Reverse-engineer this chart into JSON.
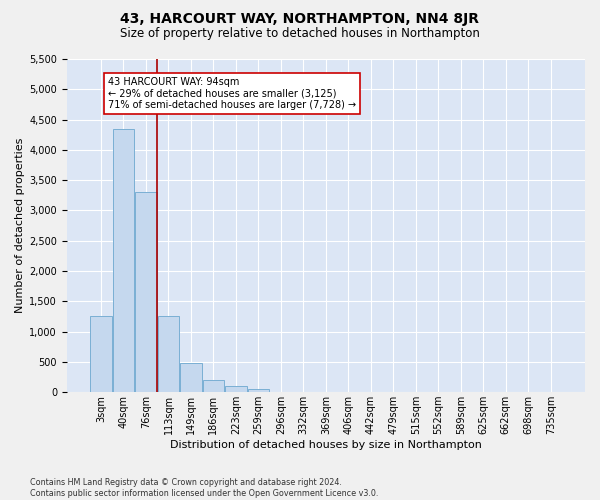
{
  "title": "43, HARCOURT WAY, NORTHAMPTON, NN4 8JR",
  "subtitle": "Size of property relative to detached houses in Northampton",
  "xlabel": "Distribution of detached houses by size in Northampton",
  "ylabel": "Number of detached properties",
  "footnote": "Contains HM Land Registry data © Crown copyright and database right 2024.\nContains public sector information licensed under the Open Government Licence v3.0.",
  "bar_labels": [
    "3sqm",
    "40sqm",
    "76sqm",
    "113sqm",
    "149sqm",
    "186sqm",
    "223sqm",
    "259sqm",
    "296sqm",
    "332sqm",
    "369sqm",
    "406sqm",
    "442sqm",
    "479sqm",
    "515sqm",
    "552sqm",
    "589sqm",
    "625sqm",
    "662sqm",
    "698sqm",
    "735sqm"
  ],
  "bar_values": [
    1250,
    4350,
    3300,
    1250,
    475,
    200,
    100,
    60,
    0,
    0,
    0,
    0,
    0,
    0,
    0,
    0,
    0,
    0,
    0,
    0,
    0
  ],
  "bar_color": "#c5d8ee",
  "bar_edge_color": "#7aafd4",
  "vline_x_pos": 2.5,
  "vline_color": "#aa0000",
  "annotation_text": "43 HARCOURT WAY: 94sqm\n← 29% of detached houses are smaller (3,125)\n71% of semi-detached houses are larger (7,728) →",
  "annotation_box_color": "#ffffff",
  "annotation_box_edge": "#cc0000",
  "ylim": [
    0,
    5500
  ],
  "yticks": [
    0,
    500,
    1000,
    1500,
    2000,
    2500,
    3000,
    3500,
    4000,
    4500,
    5000,
    5500
  ],
  "fig_bg_color": "#f0f0f0",
  "plot_bg_color": "#dce6f5",
  "title_fontsize": 10,
  "subtitle_fontsize": 8.5,
  "tick_fontsize": 7,
  "xlabel_fontsize": 8,
  "ylabel_fontsize": 8
}
